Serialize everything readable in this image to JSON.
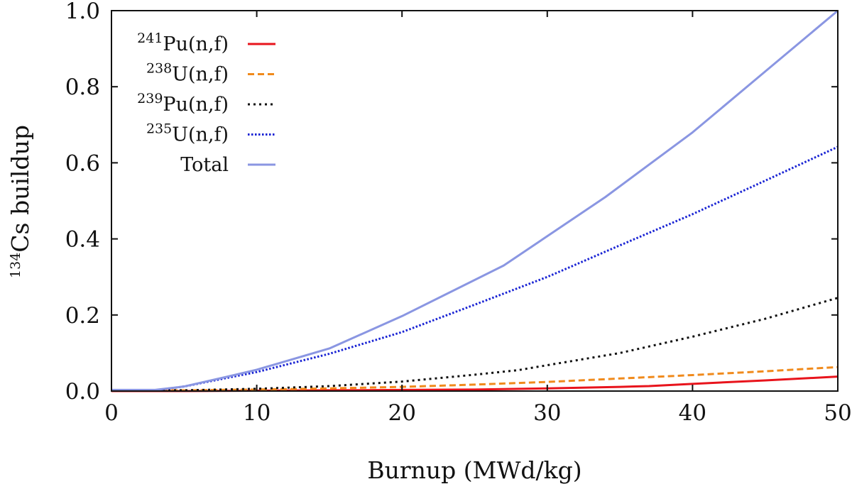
{
  "chart_data": {
    "type": "line",
    "title": "",
    "xlabel": "Burnup (MWd/kg)",
    "ylabel": {
      "sup": "134",
      "text": "Cs buildup"
    },
    "xlim": [
      0,
      50
    ],
    "ylim": [
      0,
      1.0
    ],
    "x_ticks": [
      "0",
      "10",
      "20",
      "30",
      "40",
      "50"
    ],
    "y_ticks": [
      "0.0",
      "0.2",
      "0.4",
      "0.6",
      "0.8",
      "1.0"
    ],
    "x_tick_values": [
      0,
      10,
      20,
      30,
      40,
      50
    ],
    "y_tick_values": [
      0,
      0.2,
      0.4,
      0.6,
      0.8,
      1.0
    ],
    "grid": false,
    "legend_position": "top-left",
    "series": [
      {
        "id": "pu241",
        "name": "241Pu(n,f)",
        "legend_sup": "241",
        "legend_text": "Pu(n,f)",
        "color": "#e8141c",
        "dash": "solid",
        "x": [
          0,
          5,
          10,
          15,
          20,
          25,
          30,
          35,
          37,
          40,
          45,
          50
        ],
        "values": [
          0.0,
          0.0,
          0.001,
          0.002,
          0.003,
          0.004,
          0.007,
          0.011,
          0.013,
          0.019,
          0.028,
          0.038
        ]
      },
      {
        "id": "u238",
        "name": "238U(n,f)",
        "legend_sup": "238",
        "legend_text": "U(n,f)",
        "color": "#f08a1c",
        "dash": "dashed",
        "x": [
          0,
          5,
          10,
          15,
          20,
          25,
          30,
          35,
          40,
          45,
          50
        ],
        "values": [
          0.002,
          0.002,
          0.004,
          0.007,
          0.011,
          0.017,
          0.024,
          0.033,
          0.042,
          0.052,
          0.063
        ]
      },
      {
        "id": "pu239",
        "name": "239Pu(n,f)",
        "legend_sup": "239",
        "legend_text": "Pu(n,f)",
        "color": "#111111",
        "dash": "dotted",
        "x": [
          0,
          5,
          10,
          15,
          20,
          25,
          28,
          30,
          35,
          40,
          45,
          50
        ],
        "values": [
          0.002,
          0.002,
          0.006,
          0.013,
          0.025,
          0.043,
          0.055,
          0.068,
          0.1,
          0.143,
          0.19,
          0.245
        ]
      },
      {
        "id": "u235",
        "name": "235U(n,f)",
        "legend_sup": "235",
        "legend_text": "U(n,f)",
        "color": "#1a24d4",
        "dash": "densely-dotted",
        "x": [
          0,
          3,
          5,
          8,
          10,
          15,
          20,
          25,
          30,
          35,
          40,
          45,
          50
        ],
        "values": [
          0.002,
          0.002,
          0.012,
          0.035,
          0.05,
          0.098,
          0.155,
          0.227,
          0.3,
          0.383,
          0.465,
          0.553,
          0.642
        ]
      },
      {
        "id": "total",
        "name": "Total",
        "legend_sup": "",
        "legend_text": "Total",
        "color": "#8a96e2",
        "dash": "solid",
        "x": [
          0,
          3,
          5,
          8,
          10,
          15,
          20,
          27,
          34,
          40,
          45,
          50
        ],
        "values": [
          0.003,
          0.003,
          0.012,
          0.038,
          0.056,
          0.112,
          0.197,
          0.33,
          0.51,
          0.68,
          0.84,
          1.0
        ]
      }
    ]
  }
}
